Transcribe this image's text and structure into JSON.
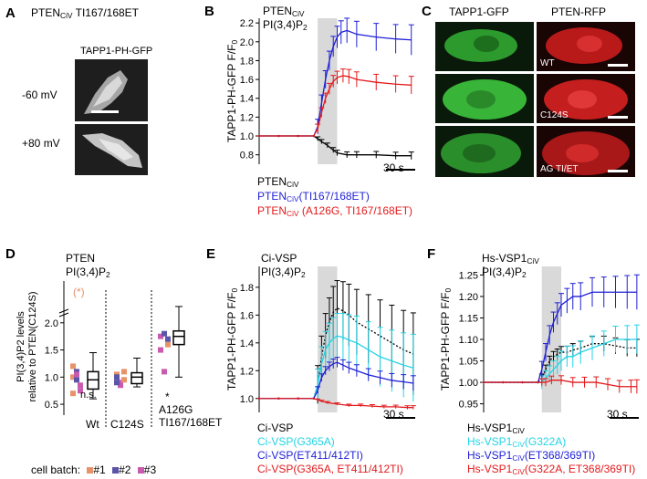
{
  "panel_labels": {
    "a": "A",
    "b": "B",
    "c": "C",
    "d": "D",
    "e": "E",
    "f": "F"
  },
  "panel_a": {
    "title": "PTEN",
    "title_sub": "CiV",
    "title_tail": " TI167/168ET",
    "image_label": "TAPP1-PH-GFP",
    "rows": [
      "-60 mV",
      "+80 mV"
    ]
  },
  "panel_c": {
    "col1": "TAPP1-GFP",
    "col2": "PTEN-RFP",
    "rows": [
      "WT",
      "C124S",
      "AG TI/ET"
    ]
  },
  "panel_d": {
    "title": "PTEN",
    "subtitle": "PI(3,4)P",
    "subtitle_sub": "2",
    "ylabel_line1": "PI(3,4)P2 levels",
    "ylabel_line2": "relative to PTEN(C124S)",
    "groups": [
      "Wt",
      "C124S",
      "A126G\nTI167/168ET"
    ],
    "group1": "Wt",
    "group2": "C124S",
    "group3_line1": "A126G",
    "group3_line2": "TI167/168ET",
    "annot_ns": "n.s.",
    "annot_star": "*",
    "outlier_label": "(*)",
    "batch_label": "cell batch:",
    "batches": [
      "#1",
      "#2",
      "#3"
    ],
    "batch_colors": [
      "#e8926a",
      "#5a55a8",
      "#c85ab0"
    ]
  },
  "panel_b": {
    "title": "PTEN",
    "title_sub": "CiV",
    "subtitle": "PI(3,4)P",
    "subtitle_sub": "2",
    "ylabel": "TAPP1-PH-GFP F/F",
    "ylabel_sub": "0",
    "scalebar": "30 s",
    "legend": [
      {
        "name": "PTEN",
        "sub": "CiV",
        "tail": "",
        "color": "#000000"
      },
      {
        "name": "PTEN",
        "sub": "CiV",
        "tail": "(TI167/168ET)",
        "color": "#1f1fd6"
      },
      {
        "name": "PTEN",
        "sub": "CiV",
        "tail": " (A126G, TI167/168ET)",
        "color": "#e41a1c"
      }
    ]
  },
  "panel_e": {
    "title": "Ci-VSP",
    "subtitle": "PI(3,4)P",
    "subtitle_sub": "2",
    "ylabel": "TAPP1-PH-GFP F/F",
    "ylabel_sub": "0",
    "scalebar": "30 s",
    "legend": [
      {
        "name": "Ci-VSP",
        "color": "#000000"
      },
      {
        "name": "Ci-VSP(G365A)",
        "color": "#22d3e6"
      },
      {
        "name": "Ci-VSP(ET411/412TI)",
        "color": "#1f1fd6"
      },
      {
        "name": "Ci-VSP(G365A, ET411/412TI)",
        "color": "#e41a1c"
      }
    ]
  },
  "panel_f": {
    "title": "Hs-VSP1",
    "title_sub": "CiV",
    "subtitle": "PI(3,4)P",
    "subtitle_sub": "2",
    "ylabel": "TAPP1-PH-GFP F/F",
    "ylabel_sub": "0",
    "scalebar": "30 s",
    "legend": [
      {
        "name": "Hs-VSP1",
        "sub": "CiV",
        "tail": "",
        "color": "#000000"
      },
      {
        "name": "Hs-VSP1",
        "sub": "CiV",
        "tail": "(G322A)",
        "color": "#22d3e6"
      },
      {
        "name": "Hs-VSP1",
        "sub": "CiV",
        "tail": "(ET368/369TI)",
        "color": "#1f1fd6"
      },
      {
        "name": "Hs-VSP1",
        "sub": "CiV",
        "tail": "(G322A, ET368/369TI)",
        "color": "#e41a1c"
      }
    ]
  },
  "chart_data": [
    {
      "id": "B",
      "type": "line",
      "title": "PTENCiV PI(3,4)P2",
      "ylabel": "TAPP1-PH-GFP F/F0",
      "ylim": [
        0.7,
        2.25
      ],
      "yticks": [
        0.8,
        1.0,
        1.2,
        1.4,
        1.6,
        1.8,
        2.0,
        2.2
      ],
      "ytick_labels": [
        "0.8",
        "1.0",
        "1.2",
        "1.4",
        "1.6",
        "1.8",
        "2.0",
        "2.2"
      ],
      "xlim": [
        0,
        160
      ],
      "stim": [
        60,
        80
      ],
      "series": [
        {
          "name": "PTENCiV",
          "color": "#000000",
          "t": [
            0,
            20,
            40,
            56,
            60,
            64,
            70,
            76,
            80,
            90,
            100,
            120,
            140,
            156
          ],
          "y": [
            1.0,
            1.0,
            1.0,
            1.0,
            0.97,
            0.94,
            0.9,
            0.85,
            0.82,
            0.8,
            0.8,
            0.8,
            0.79,
            0.79
          ],
          "err": 0.03
        },
        {
          "name": "PTENCiV(TI167/168ET)",
          "color": "#1f1fd6",
          "t": [
            0,
            20,
            40,
            56,
            60,
            64,
            68,
            72,
            76,
            80,
            84,
            90,
            100,
            120,
            140,
            156
          ],
          "y": [
            1.0,
            1.0,
            1.0,
            1.0,
            1.1,
            1.35,
            1.6,
            1.8,
            1.95,
            2.05,
            2.1,
            2.12,
            2.08,
            2.05,
            2.03,
            2.02
          ],
          "err": 0.12
        },
        {
          "name": "PTENCiV (A126G, TI167/168ET)",
          "color": "#e41a1c",
          "t": [
            0,
            20,
            40,
            56,
            60,
            64,
            68,
            72,
            76,
            80,
            86,
            92,
            100,
            120,
            140,
            156
          ],
          "y": [
            1.0,
            1.0,
            1.0,
            1.0,
            1.08,
            1.25,
            1.4,
            1.5,
            1.58,
            1.62,
            1.64,
            1.63,
            1.6,
            1.57,
            1.55,
            1.54
          ],
          "err": 0.07
        }
      ]
    },
    {
      "id": "D",
      "type": "box",
      "title": "PTEN PI(3,4)P2",
      "ylabel": "PI(3,4)P2 levels relative to PTEN(C124S)",
      "categories": [
        "Wt",
        "C124S",
        "A126G TI167/168ET"
      ],
      "yticks": [
        0.5,
        1.0,
        1.5,
        2.0
      ],
      "ytick_labels": [
        "0.5",
        "1.0",
        "1.5",
        "2.0"
      ],
      "boxes": [
        {
          "median": 0.95,
          "q1": 0.78,
          "q3": 1.1,
          "whisker_low": 0.6,
          "whisker_high": 1.45,
          "points": [
            1.0,
            0.95,
            0.85,
            1.2,
            1.1,
            0.75,
            0.7,
            1.05
          ],
          "batches": [
            1,
            2,
            3,
            1,
            2,
            3,
            1,
            3
          ]
        },
        {
          "median": 1.0,
          "q1": 0.88,
          "q3": 1.08,
          "whisker_low": 0.82,
          "whisker_high": 1.35,
          "points": [
            1.05,
            0.9,
            0.95,
            1.0,
            0.85,
            1.1,
            0.9
          ],
          "batches": [
            1,
            3,
            1,
            2,
            3,
            1,
            2
          ]
        },
        {
          "median": 1.75,
          "q1": 1.6,
          "q3": 1.85,
          "whisker_low": 1.0,
          "whisker_high": 2.3,
          "points": [
            1.75,
            1.8,
            1.6,
            1.5,
            1.1,
            1.7
          ],
          "batches": [
            3,
            2,
            1,
            3,
            3,
            2
          ]
        }
      ],
      "outlier_value": 3.2
    },
    {
      "id": "E",
      "type": "line",
      "title": "Ci-VSP PI(3,4)P2",
      "ylabel": "TAPP1-PH-GFP F/F0",
      "ylim": [
        0.9,
        1.95
      ],
      "yticks": [
        1.0,
        1.2,
        1.4,
        1.6,
        1.8
      ],
      "ytick_labels": [
        "1.0",
        "1.2",
        "1.4",
        "1.6",
        "1.8"
      ],
      "xlim": [
        0,
        160
      ],
      "stim": [
        60,
        80
      ],
      "series": [
        {
          "name": "Ci-VSP",
          "color": "#000000",
          "t": [
            0,
            20,
            40,
            56,
            60,
            64,
            68,
            72,
            76,
            80,
            86,
            92,
            100,
            112,
            124,
            136,
            148,
            158
          ],
          "y": [
            1.0,
            1.0,
            1.0,
            1.0,
            1.1,
            1.3,
            1.45,
            1.55,
            1.62,
            1.65,
            1.63,
            1.6,
            1.55,
            1.5,
            1.45,
            1.4,
            1.35,
            1.32
          ],
          "err": 0.22
        },
        {
          "name": "Ci-VSP(G365A)",
          "color": "#22d3e6",
          "t": [
            0,
            20,
            40,
            56,
            60,
            64,
            68,
            72,
            76,
            80,
            86,
            92,
            100,
            112,
            124,
            136,
            148,
            158
          ],
          "y": [
            1.0,
            1.0,
            1.0,
            1.0,
            1.1,
            1.25,
            1.35,
            1.4,
            1.43,
            1.45,
            1.44,
            1.42,
            1.4,
            1.35,
            1.3,
            1.27,
            1.24,
            1.22
          ],
          "err": 0.18
        },
        {
          "name": "Ci-VSP(ET411/412TI)",
          "color": "#1f1fd6",
          "t": [
            0,
            20,
            40,
            56,
            60,
            64,
            68,
            72,
            76,
            80,
            86,
            92,
            100,
            112,
            124,
            136,
            148,
            158
          ],
          "y": [
            1.0,
            1.0,
            1.0,
            1.0,
            1.06,
            1.15,
            1.2,
            1.23,
            1.25,
            1.26,
            1.24,
            1.22,
            1.2,
            1.17,
            1.15,
            1.13,
            1.12,
            1.11
          ],
          "err": 0.04
        },
        {
          "name": "Ci-VSP(G365A, ET411/412TI)",
          "color": "#e41a1c",
          "t": [
            0,
            20,
            40,
            56,
            60,
            64,
            70,
            80,
            92,
            104,
            116,
            128,
            140,
            152,
            158
          ],
          "y": [
            1.0,
            1.0,
            1.0,
            1.0,
            0.99,
            0.98,
            0.97,
            0.96,
            0.95,
            0.95,
            0.945,
            0.94,
            0.94,
            0.935,
            0.935
          ],
          "err": 0.01
        }
      ]
    },
    {
      "id": "F",
      "type": "line",
      "title": "Hs-VSP1CiV PI(3,4)P2",
      "ylabel": "TAPP1-PH-GFP F/F0",
      "ylim": [
        0.93,
        1.27
      ],
      "yticks": [
        0.95,
        1.0,
        1.05,
        1.1,
        1.15,
        1.2,
        1.25
      ],
      "ytick_labels": [
        "0.95",
        "1.00",
        "1.05",
        "1.10",
        "1.15",
        "1.20",
        "1.25"
      ],
      "xlim": [
        0,
        160
      ],
      "stim": [
        60,
        80
      ],
      "series": [
        {
          "name": "Hs-VSP1CiV",
          "color": "#000000",
          "t": [
            0,
            20,
            40,
            56,
            60,
            64,
            68,
            72,
            76,
            80,
            86,
            92,
            100,
            112,
            124,
            136,
            148,
            158
          ],
          "y": [
            1.0,
            1.0,
            1.0,
            1.0,
            1.01,
            1.03,
            1.05,
            1.06,
            1.065,
            1.07,
            1.07,
            1.075,
            1.08,
            1.09,
            1.09,
            1.085,
            1.08,
            1.08
          ],
          "err": 0.015
        },
        {
          "name": "Hs-VSP1CiV(G322A)",
          "color": "#22d3e6",
          "t": [
            0,
            20,
            40,
            56,
            60,
            64,
            68,
            72,
            76,
            80,
            86,
            92,
            100,
            112,
            124,
            136,
            148,
            158
          ],
          "y": [
            1.0,
            1.0,
            1.0,
            1.0,
            1.0,
            1.01,
            1.02,
            1.03,
            1.04,
            1.05,
            1.06,
            1.06,
            1.07,
            1.08,
            1.09,
            1.1,
            1.1,
            1.1
          ],
          "err": 0.025
        },
        {
          "name": "Hs-VSP1CiV(ET368/369TI)",
          "color": "#1f1fd6",
          "t": [
            0,
            20,
            40,
            56,
            60,
            64,
            68,
            72,
            76,
            80,
            86,
            92,
            100,
            112,
            124,
            136,
            148,
            158
          ],
          "y": [
            1.0,
            1.0,
            1.0,
            1.0,
            1.03,
            1.07,
            1.11,
            1.14,
            1.16,
            1.18,
            1.19,
            1.2,
            1.2,
            1.21,
            1.21,
            1.21,
            1.21,
            1.21
          ],
          "err": 0.03
        },
        {
          "name": "Hs-VSP1CiV(G322A, ET368/369TI)",
          "color": "#e41a1c",
          "t": [
            0,
            20,
            40,
            56,
            60,
            64,
            70,
            80,
            92,
            104,
            116,
            128,
            140,
            152,
            158
          ],
          "y": [
            1.0,
            1.0,
            1.0,
            1.0,
            1.0,
            1.0,
            1.005,
            1.005,
            1.0,
            1.0,
            1.0,
            0.995,
            0.99,
            0.99,
            0.99
          ],
          "err": 0.012
        }
      ]
    }
  ]
}
